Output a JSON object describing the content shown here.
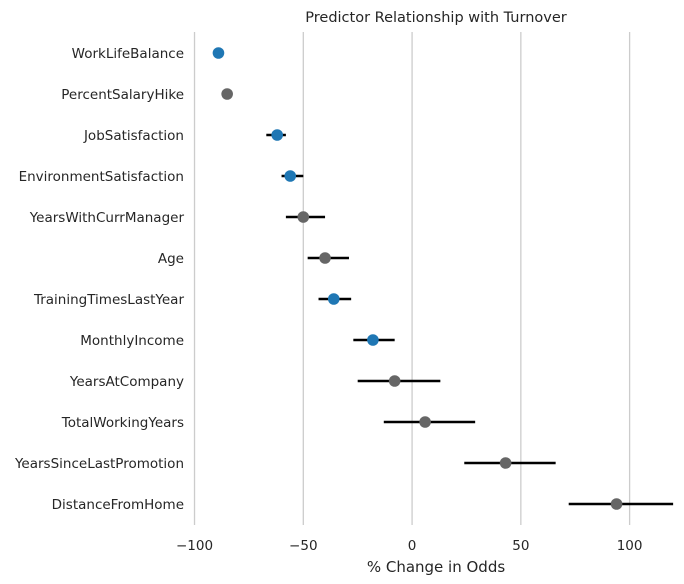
{
  "chart_data": {
    "type": "scatter",
    "title": "Predictor Relationship with Turnover",
    "xlabel": "% Change in Odds",
    "ylabel": "",
    "xlim": [
      -103,
      125
    ],
    "xticks": [
      -100,
      -50,
      0,
      50,
      100
    ],
    "xtick_labels": [
      "−100",
      "−50",
      "0",
      "50",
      "100"
    ],
    "grid": "vertical",
    "colors": {
      "significant": "#1f77b4",
      "not_significant": "#666666",
      "ci": "#000000"
    },
    "categories": [
      "WorkLifeBalance",
      "PercentSalaryHike",
      "JobSatisfaction",
      "EnvironmentSatisfaction",
      "YearsWithCurrManager",
      "Age",
      "TrainingTimesLastYear",
      "MonthlyIncome",
      "YearsAtCompany",
      "TotalWorkingYears",
      "YearsSinceLastPromotion",
      "DistanceFromHome"
    ],
    "values": [
      -89,
      -85,
      -62,
      -56,
      -50,
      -40,
      -36,
      -18,
      -8,
      6,
      43,
      94
    ],
    "ci_low": [
      -91,
      -87,
      -67,
      -60,
      -58,
      -48,
      -43,
      -27,
      -25,
      -13,
      24,
      72
    ],
    "ci_high": [
      -87,
      -83,
      -58,
      -50,
      -40,
      -29,
      -28,
      -8,
      13,
      29,
      66,
      120
    ],
    "significant": [
      true,
      false,
      true,
      true,
      false,
      false,
      true,
      true,
      false,
      false,
      false,
      false
    ]
  }
}
